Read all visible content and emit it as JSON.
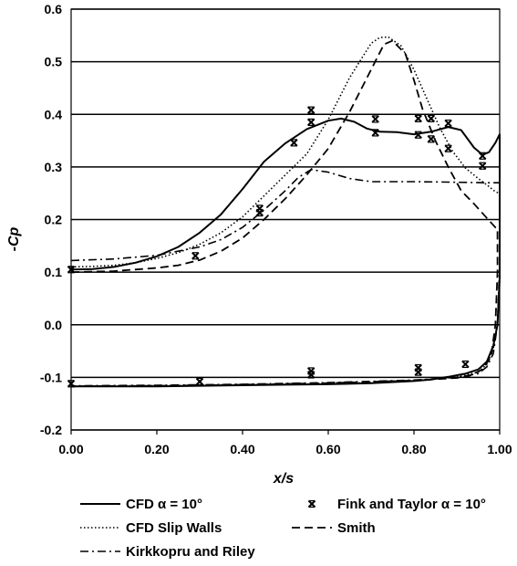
{
  "chart_data": {
    "type": "line",
    "xlabel": "x/s",
    "ylabel": "-Cp",
    "xlim": [
      0,
      1
    ],
    "ylim": [
      -0.2,
      0.6
    ],
    "x_ticks": [
      "0.00",
      "0.20",
      "0.40",
      "0.60",
      "0.80",
      "1.00"
    ],
    "x_tick_values": [
      0,
      0.2,
      0.4,
      0.6,
      0.8,
      1.0
    ],
    "y_ticks": [
      "-0.2",
      "-0.1",
      "0.0",
      "0.1",
      "0.2",
      "0.3",
      "0.4",
      "0.5",
      "0.6"
    ],
    "y_tick_values": [
      -0.2,
      -0.1,
      0.0,
      0.1,
      0.2,
      0.3,
      0.4,
      0.5,
      0.6
    ],
    "grid": "horizontal",
    "legend_position": "bottom",
    "series": [
      {
        "name": "CFD α = 10°",
        "style": "solid",
        "color": "#000000",
        "points": [
          [
            0,
            0.105
          ],
          [
            0.05,
            0.106
          ],
          [
            0.1,
            0.11
          ],
          [
            0.15,
            0.118
          ],
          [
            0.2,
            0.13
          ],
          [
            0.25,
            0.148
          ],
          [
            0.3,
            0.175
          ],
          [
            0.35,
            0.21
          ],
          [
            0.4,
            0.258
          ],
          [
            0.45,
            0.31
          ],
          [
            0.5,
            0.345
          ],
          [
            0.55,
            0.372
          ],
          [
            0.6,
            0.388
          ],
          [
            0.63,
            0.392
          ],
          [
            0.66,
            0.386
          ],
          [
            0.69,
            0.373
          ],
          [
            0.72,
            0.367
          ],
          [
            0.76,
            0.366
          ],
          [
            0.8,
            0.362
          ],
          [
            0.84,
            0.367
          ],
          [
            0.88,
            0.376
          ],
          [
            0.91,
            0.37
          ],
          [
            0.94,
            0.337
          ],
          [
            0.96,
            0.323
          ],
          [
            0.975,
            0.328
          ],
          [
            0.99,
            0.346
          ],
          [
            1.0,
            0.362
          ],
          [
            1.0,
            0.09
          ],
          [
            0.995,
            0.0
          ],
          [
            0.985,
            -0.04
          ],
          [
            0.97,
            -0.07
          ],
          [
            0.95,
            -0.085
          ],
          [
            0.92,
            -0.093
          ],
          [
            0.88,
            -0.099
          ],
          [
            0.84,
            -0.104
          ],
          [
            0.8,
            -0.107
          ],
          [
            0.7,
            -0.111
          ],
          [
            0.6,
            -0.113
          ],
          [
            0.5,
            -0.114
          ],
          [
            0.4,
            -0.115
          ],
          [
            0.3,
            -0.116
          ],
          [
            0.2,
            -0.117
          ],
          [
            0.1,
            -0.117
          ],
          [
            0,
            -0.117
          ]
        ]
      },
      {
        "name": "CFD Slip Walls",
        "style": "dotted",
        "color": "#000000",
        "points": [
          [
            0,
            0.11
          ],
          [
            0.05,
            0.111
          ],
          [
            0.1,
            0.113
          ],
          [
            0.15,
            0.118
          ],
          [
            0.2,
            0.126
          ],
          [
            0.25,
            0.137
          ],
          [
            0.3,
            0.153
          ],
          [
            0.35,
            0.175
          ],
          [
            0.4,
            0.205
          ],
          [
            0.45,
            0.245
          ],
          [
            0.5,
            0.285
          ],
          [
            0.55,
            0.325
          ],
          [
            0.6,
            0.39
          ],
          [
            0.65,
            0.47
          ],
          [
            0.7,
            0.535
          ],
          [
            0.72,
            0.546
          ],
          [
            0.74,
            0.547
          ],
          [
            0.77,
            0.53
          ],
          [
            0.8,
            0.485
          ],
          [
            0.83,
            0.43
          ],
          [
            0.86,
            0.375
          ],
          [
            0.89,
            0.33
          ],
          [
            0.92,
            0.298
          ],
          [
            0.95,
            0.278
          ],
          [
            0.97,
            0.266
          ],
          [
            0.99,
            0.253
          ],
          [
            1.0,
            0.25
          ],
          [
            1.0,
            0.08
          ],
          [
            0.995,
            0.0
          ],
          [
            0.985,
            -0.045
          ],
          [
            0.97,
            -0.075
          ],
          [
            0.95,
            -0.09
          ],
          [
            0.9,
            -0.099
          ],
          [
            0.85,
            -0.103
          ],
          [
            0.8,
            -0.106
          ],
          [
            0.7,
            -0.11
          ],
          [
            0.6,
            -0.112
          ],
          [
            0.5,
            -0.113
          ],
          [
            0.4,
            -0.114
          ],
          [
            0.3,
            -0.115
          ],
          [
            0.2,
            -0.116
          ],
          [
            0.1,
            -0.116
          ],
          [
            0,
            -0.117
          ]
        ]
      },
      {
        "name": "Kirkkopru and Riley",
        "style": "dashdot",
        "color": "#000000",
        "points": [
          [
            0,
            0.122
          ],
          [
            0.1,
            0.125
          ],
          [
            0.2,
            0.132
          ],
          [
            0.3,
            0.148
          ],
          [
            0.35,
            0.162
          ],
          [
            0.4,
            0.185
          ],
          [
            0.45,
            0.218
          ],
          [
            0.5,
            0.255
          ],
          [
            0.53,
            0.28
          ],
          [
            0.56,
            0.295
          ],
          [
            0.6,
            0.29
          ],
          [
            0.65,
            0.278
          ],
          [
            0.7,
            0.272
          ],
          [
            0.8,
            0.272
          ],
          [
            0.9,
            0.271
          ],
          [
            0.97,
            0.27
          ],
          [
            1.0,
            0.27
          ],
          [
            1.0,
            0.12
          ],
          [
            0.995,
            0.0
          ],
          [
            0.985,
            -0.055
          ],
          [
            0.97,
            -0.08
          ],
          [
            0.95,
            -0.093
          ],
          [
            0.9,
            -0.1
          ],
          [
            0.8,
            -0.105
          ],
          [
            0.6,
            -0.11
          ],
          [
            0.4,
            -0.113
          ],
          [
            0.2,
            -0.115
          ],
          [
            0,
            -0.116
          ]
        ]
      },
      {
        "name": "Smith",
        "style": "dashed",
        "color": "#000000",
        "points": [
          [
            0,
            0.1
          ],
          [
            0.1,
            0.102
          ],
          [
            0.2,
            0.108
          ],
          [
            0.25,
            0.113
          ],
          [
            0.3,
            0.123
          ],
          [
            0.35,
            0.14
          ],
          [
            0.4,
            0.165
          ],
          [
            0.45,
            0.2
          ],
          [
            0.5,
            0.24
          ],
          [
            0.55,
            0.285
          ],
          [
            0.6,
            0.335
          ],
          [
            0.65,
            0.405
          ],
          [
            0.7,
            0.485
          ],
          [
            0.73,
            0.533
          ],
          [
            0.75,
            0.54
          ],
          [
            0.78,
            0.515
          ],
          [
            0.8,
            0.465
          ],
          [
            0.82,
            0.41
          ],
          [
            0.85,
            0.35
          ],
          [
            0.88,
            0.3
          ],
          [
            0.91,
            0.255
          ],
          [
            0.94,
            0.23
          ],
          [
            0.97,
            0.203
          ],
          [
            0.99,
            0.185
          ],
          [
            0.995,
            0.183
          ],
          [
            0.995,
            0.1
          ],
          [
            0.99,
            0.0
          ],
          [
            0.98,
            -0.06
          ],
          [
            0.96,
            -0.085
          ],
          [
            0.93,
            -0.097
          ],
          [
            0.9,
            -0.101
          ],
          [
            0.8,
            -0.106
          ],
          [
            0.6,
            -0.111
          ],
          [
            0.4,
            -0.114
          ],
          [
            0.2,
            -0.116
          ],
          [
            0,
            -0.117
          ]
        ]
      },
      {
        "name": "Fink and Taylor α = 10°",
        "style": "markers",
        "marker": "x",
        "color": "#000000",
        "points": [
          [
            0.0,
            0.105
          ],
          [
            0.29,
            0.131
          ],
          [
            0.44,
            0.213
          ],
          [
            0.44,
            0.221
          ],
          [
            0.52,
            0.346
          ],
          [
            0.56,
            0.385
          ],
          [
            0.56,
            0.408
          ],
          [
            0.71,
            0.391
          ],
          [
            0.71,
            0.365
          ],
          [
            0.81,
            0.392
          ],
          [
            0.81,
            0.361
          ],
          [
            0.84,
            0.392
          ],
          [
            0.84,
            0.353
          ],
          [
            0.88,
            0.383
          ],
          [
            0.88,
            0.335
          ],
          [
            0.96,
            0.321
          ],
          [
            0.96,
            0.302
          ],
          [
            0.0,
            -0.112
          ],
          [
            0.3,
            -0.108
          ],
          [
            0.56,
            -0.088
          ],
          [
            0.56,
            -0.095
          ],
          [
            0.81,
            -0.082
          ],
          [
            0.81,
            -0.09
          ],
          [
            0.92,
            -0.075
          ]
        ]
      }
    ]
  }
}
